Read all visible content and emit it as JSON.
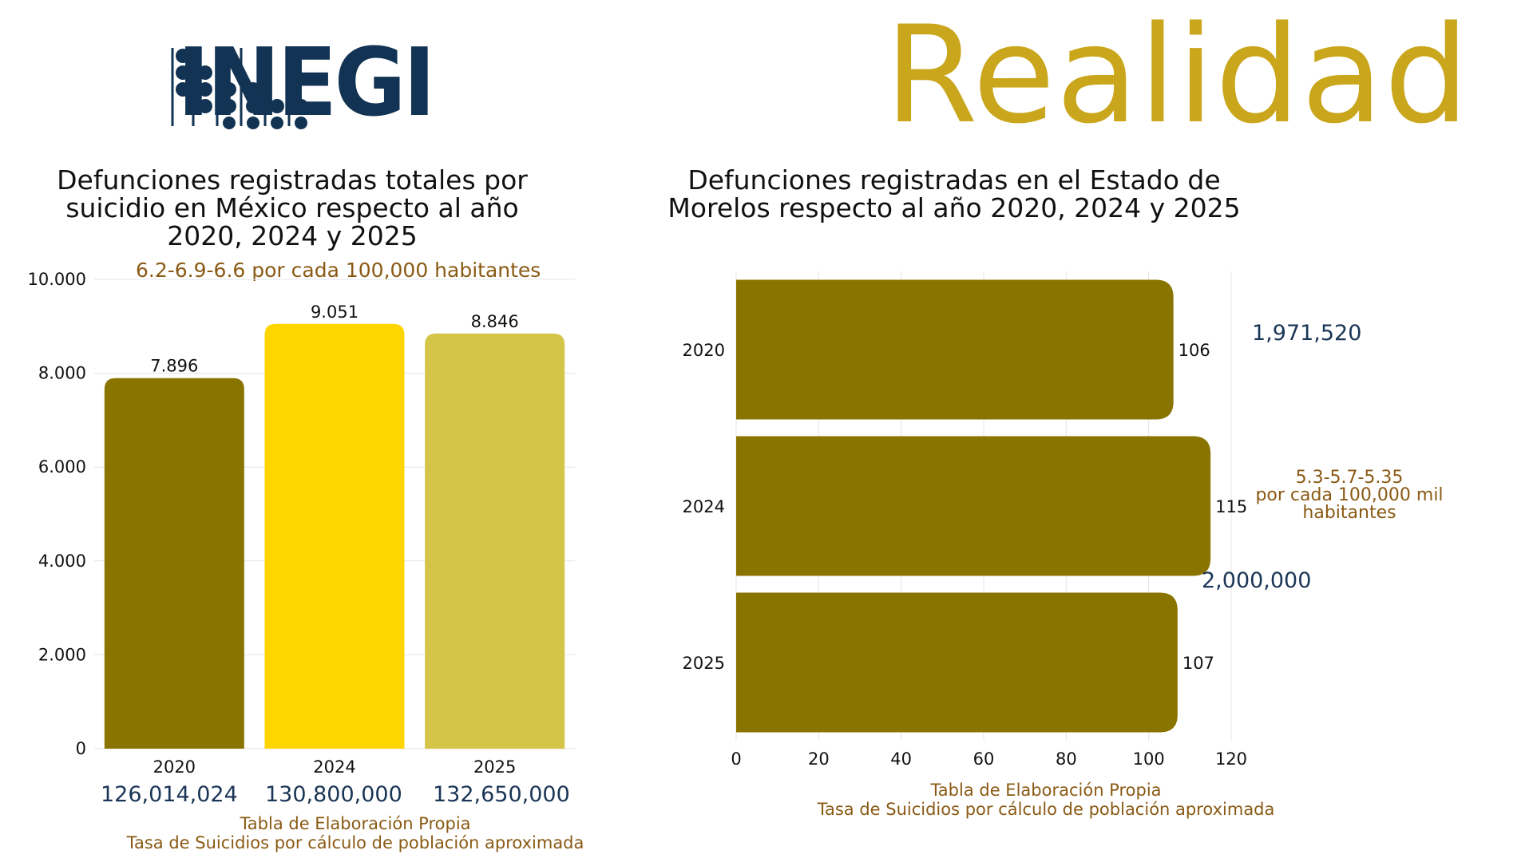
{
  "logo": {
    "text": "INEGI",
    "color": "#123353"
  },
  "header": {
    "headline": "Realidad",
    "headline_color": "#c9a61b"
  },
  "chart_data": [
    {
      "type": "bar",
      "title": "Defunciones registradas totales por suicidio en México respecto al año 2020, 2024 y 2025",
      "categories": [
        "2020",
        "2024",
        "2025"
      ],
      "values": [
        7896,
        9051,
        8846
      ],
      "value_labels": [
        "7.896",
        "9.051",
        "8.846"
      ],
      "colors": [
        "#8a7400",
        "#ffd500",
        "#d4c447"
      ],
      "ylim": [
        0,
        10000
      ],
      "yticks": [
        0,
        2000,
        4000,
        6000,
        8000,
        10000
      ],
      "ytick_labels": [
        "0",
        "2.000",
        "4.000",
        "6.000",
        "8.000",
        "10.000"
      ],
      "grid": true,
      "rate_note": "6.2-6.9-6.6 por cada 100,000 habitantes",
      "population": [
        "126,014,024",
        "130,800,000",
        "132,650,000"
      ],
      "source_line1": "Tabla de Elaboración Propia",
      "source_line2": "Tasa de Suicidios por cálculo de población aproximada"
    },
    {
      "type": "bar",
      "orientation": "horizontal",
      "title": "Defunciones registradas en el Estado de Morelos respecto al año 2020, 2024 y 2025",
      "categories": [
        "2020",
        "2024",
        "2025"
      ],
      "values": [
        106,
        115,
        107
      ],
      "value_labels": [
        "106",
        "115",
        "107"
      ],
      "color": "#8a7400",
      "xlim": [
        0,
        120
      ],
      "xticks": [
        0,
        20,
        40,
        60,
        80,
        100,
        120
      ],
      "xtick_labels": [
        "0",
        "20",
        "40",
        "60",
        "80",
        "100",
        "120"
      ],
      "grid": true,
      "population": [
        "1,971,520",
        "2,000,000"
      ],
      "rate_note_line1": "5.3-5.7-5.35",
      "rate_note_line2": "por cada 100,000 mil",
      "rate_note_line3": "habitantes",
      "source_line1": "Tabla de Elaboración Propia",
      "source_line2": "Tasa de Suicidios por cálculo de población aproximada"
    }
  ]
}
